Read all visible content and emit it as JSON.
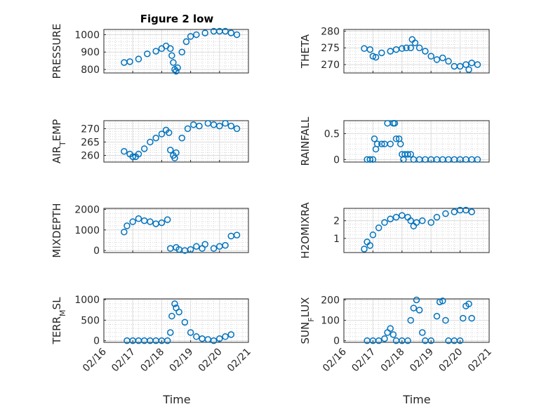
{
  "title": "Figure 2 low",
  "chart_data": [
    {
      "type": "scatter",
      "ylabel": "PRESSURE",
      "ylim": [
        780,
        1030
      ],
      "yticks": [
        800,
        900,
        1000
      ],
      "xlim": [
        0,
        5
      ],
      "marker_color": "#0072BD",
      "grid": "on",
      "points": [
        [
          0.7,
          840
        ],
        [
          0.9,
          845
        ],
        [
          1.2,
          860
        ],
        [
          1.5,
          890
        ],
        [
          1.8,
          905
        ],
        [
          2.0,
          920
        ],
        [
          2.15,
          935
        ],
        [
          2.3,
          920
        ],
        [
          2.35,
          880
        ],
        [
          2.4,
          840
        ],
        [
          2.45,
          800
        ],
        [
          2.5,
          790
        ],
        [
          2.55,
          810
        ],
        [
          2.7,
          900
        ],
        [
          2.85,
          960
        ],
        [
          3.0,
          990
        ],
        [
          3.2,
          1000
        ],
        [
          3.5,
          1010
        ],
        [
          3.8,
          1020
        ],
        [
          4.0,
          1020
        ],
        [
          4.2,
          1020
        ],
        [
          4.4,
          1010
        ],
        [
          4.6,
          1000
        ]
      ]
    },
    {
      "type": "scatter",
      "ylabel": "THETA",
      "ylim": [
        267.5,
        280.5
      ],
      "yticks": [
        270,
        275,
        280
      ],
      "xlim": [
        0,
        5
      ],
      "marker_color": "#0072BD",
      "grid": "on",
      "points": [
        [
          0.7,
          274.8
        ],
        [
          0.9,
          274.5
        ],
        [
          1.0,
          272.5
        ],
        [
          1.1,
          272.2
        ],
        [
          1.3,
          273.5
        ],
        [
          1.6,
          274.0
        ],
        [
          1.8,
          274.5
        ],
        [
          2.0,
          274.8
        ],
        [
          2.15,
          275.0
        ],
        [
          2.3,
          275.0
        ],
        [
          2.35,
          277.5
        ],
        [
          2.45,
          276.5
        ],
        [
          2.6,
          275.0
        ],
        [
          2.8,
          274.0
        ],
        [
          3.0,
          272.5
        ],
        [
          3.2,
          271.5
        ],
        [
          3.4,
          272.0
        ],
        [
          3.6,
          271.0
        ],
        [
          3.8,
          269.5
        ],
        [
          4.0,
          269.5
        ],
        [
          4.2,
          270.0
        ],
        [
          4.3,
          268.5
        ],
        [
          4.4,
          270.5
        ],
        [
          4.6,
          270.0
        ]
      ]
    },
    {
      "type": "scatter",
      "ylabel": "AIR_TEMP",
      "ylim": [
        257.5,
        273
      ],
      "yticks": [
        260,
        265,
        270
      ],
      "xlim": [
        0,
        5
      ],
      "marker_color": "#0072BD",
      "grid": "on",
      "points": [
        [
          0.7,
          261.5
        ],
        [
          0.9,
          260.5
        ],
        [
          1.0,
          259.5
        ],
        [
          1.1,
          259.5
        ],
        [
          1.2,
          260.5
        ],
        [
          1.4,
          262.5
        ],
        [
          1.6,
          265.0
        ],
        [
          1.8,
          266.5
        ],
        [
          2.0,
          268.0
        ],
        [
          2.15,
          269.5
        ],
        [
          2.25,
          268.5
        ],
        [
          2.3,
          262.0
        ],
        [
          2.4,
          260.0
        ],
        [
          2.45,
          259.0
        ],
        [
          2.5,
          261.0
        ],
        [
          2.7,
          266.5
        ],
        [
          2.9,
          270.0
        ],
        [
          3.1,
          271.5
        ],
        [
          3.3,
          271.0
        ],
        [
          3.6,
          272.0
        ],
        [
          3.8,
          271.5
        ],
        [
          4.0,
          271.0
        ],
        [
          4.2,
          272.0
        ],
        [
          4.4,
          271.0
        ],
        [
          4.6,
          270.0
        ]
      ]
    },
    {
      "type": "scatter",
      "ylabel": "RAINFALL",
      "ylim": [
        -0.05,
        0.75
      ],
      "yticks": [
        0,
        0.5
      ],
      "xlim": [
        0,
        5
      ],
      "marker_color": "#0072BD",
      "grid": "on",
      "points": [
        [
          0.8,
          0.0
        ],
        [
          0.9,
          0.0
        ],
        [
          1.0,
          0.0
        ],
        [
          1.05,
          0.4
        ],
        [
          1.1,
          0.2
        ],
        [
          1.15,
          0.3
        ],
        [
          1.3,
          0.3
        ],
        [
          1.4,
          0.3
        ],
        [
          1.5,
          0.7
        ],
        [
          1.6,
          0.3
        ],
        [
          1.7,
          0.7
        ],
        [
          1.75,
          0.7
        ],
        [
          1.8,
          0.4
        ],
        [
          1.9,
          0.4
        ],
        [
          1.95,
          0.3
        ],
        [
          2.0,
          0.1
        ],
        [
          2.05,
          0.0
        ],
        [
          2.1,
          0.1
        ],
        [
          2.2,
          0.1
        ],
        [
          2.3,
          0.1
        ],
        [
          2.4,
          0.0
        ],
        [
          2.6,
          0.0
        ],
        [
          2.8,
          0.0
        ],
        [
          3.0,
          0.0
        ],
        [
          3.2,
          0.0
        ],
        [
          3.4,
          0.0
        ],
        [
          3.6,
          0.0
        ],
        [
          3.8,
          0.0
        ],
        [
          4.0,
          0.0
        ],
        [
          4.2,
          0.0
        ],
        [
          4.4,
          0.0
        ],
        [
          4.6,
          0.0
        ]
      ]
    },
    {
      "type": "scatter",
      "ylabel": "MIXDEPTH",
      "ylim": [
        -100,
        2050
      ],
      "yticks": [
        0,
        1000,
        2000
      ],
      "xlim": [
        0,
        5
      ],
      "marker_color": "#0072BD",
      "grid": "on",
      "points": [
        [
          0.7,
          900
        ],
        [
          0.8,
          1200
        ],
        [
          1.0,
          1400
        ],
        [
          1.2,
          1550
        ],
        [
          1.4,
          1450
        ],
        [
          1.6,
          1400
        ],
        [
          1.8,
          1300
        ],
        [
          2.0,
          1350
        ],
        [
          2.2,
          1500
        ],
        [
          2.3,
          100
        ],
        [
          2.5,
          150
        ],
        [
          2.6,
          50
        ],
        [
          2.8,
          0
        ],
        [
          3.0,
          50
        ],
        [
          3.2,
          200
        ],
        [
          3.4,
          100
        ],
        [
          3.5,
          300
        ],
        [
          3.8,
          100
        ],
        [
          4.0,
          200
        ],
        [
          4.2,
          250
        ],
        [
          4.4,
          700
        ],
        [
          4.6,
          750
        ]
      ]
    },
    {
      "type": "scatter",
      "ylabel": "H2OMIXRA",
      "ylim": [
        0.2,
        2.7
      ],
      "yticks": [
        0,
        1,
        2
      ],
      "xlim": [
        0,
        5
      ],
      "marker_color": "#0072BD",
      "grid": "on",
      "points": [
        [
          0.7,
          0.4
        ],
        [
          0.8,
          0.8
        ],
        [
          0.9,
          0.6
        ],
        [
          1.0,
          1.2
        ],
        [
          1.2,
          1.6
        ],
        [
          1.4,
          1.9
        ],
        [
          1.6,
          2.1
        ],
        [
          1.8,
          2.2
        ],
        [
          2.0,
          2.3
        ],
        [
          2.2,
          2.2
        ],
        [
          2.3,
          2.0
        ],
        [
          2.4,
          1.7
        ],
        [
          2.5,
          1.9
        ],
        [
          2.7,
          2.0
        ],
        [
          3.0,
          1.9
        ],
        [
          3.2,
          2.2
        ],
        [
          3.5,
          2.4
        ],
        [
          3.8,
          2.5
        ],
        [
          4.0,
          2.6
        ],
        [
          4.2,
          2.6
        ],
        [
          4.4,
          2.5
        ]
      ]
    },
    {
      "type": "scatter",
      "ylabel": "TERR_MSL",
      "ylim": [
        -40,
        1020
      ],
      "yticks": [
        0,
        500,
        1000
      ],
      "xlim": [
        0,
        5
      ],
      "marker_color": "#0072BD",
      "grid": "on",
      "points": [
        [
          0.8,
          0
        ],
        [
          1.0,
          0
        ],
        [
          1.2,
          0
        ],
        [
          1.4,
          0
        ],
        [
          1.6,
          0
        ],
        [
          1.8,
          0
        ],
        [
          2.0,
          0
        ],
        [
          2.2,
          0
        ],
        [
          2.3,
          200
        ],
        [
          2.35,
          600
        ],
        [
          2.45,
          900
        ],
        [
          2.5,
          800
        ],
        [
          2.6,
          700
        ],
        [
          2.8,
          450
        ],
        [
          3.0,
          200
        ],
        [
          3.2,
          100
        ],
        [
          3.4,
          50
        ],
        [
          3.6,
          30
        ],
        [
          3.8,
          0
        ],
        [
          4.0,
          50
        ],
        [
          4.2,
          100
        ],
        [
          4.4,
          150
        ]
      ]
    },
    {
      "type": "scatter",
      "ylabel": "SUN_FLUX",
      "ylim": [
        -8,
        205
      ],
      "yticks": [
        0,
        100,
        200
      ],
      "xlim": [
        0,
        5
      ],
      "marker_color": "#0072BD",
      "grid": "on",
      "points": [
        [
          0.8,
          0
        ],
        [
          1.0,
          0
        ],
        [
          1.2,
          0
        ],
        [
          1.4,
          10
        ],
        [
          1.5,
          40
        ],
        [
          1.6,
          60
        ],
        [
          1.7,
          30
        ],
        [
          1.8,
          0
        ],
        [
          2.0,
          0
        ],
        [
          2.2,
          0
        ],
        [
          2.3,
          100
        ],
        [
          2.4,
          160
        ],
        [
          2.5,
          200
        ],
        [
          2.6,
          150
        ],
        [
          2.7,
          40
        ],
        [
          2.8,
          0
        ],
        [
          3.0,
          0
        ],
        [
          3.2,
          120
        ],
        [
          3.3,
          190
        ],
        [
          3.4,
          195
        ],
        [
          3.5,
          100
        ],
        [
          3.6,
          0
        ],
        [
          3.8,
          0
        ],
        [
          4.0,
          0
        ],
        [
          4.1,
          110
        ],
        [
          4.2,
          170
        ],
        [
          4.3,
          180
        ],
        [
          4.4,
          110
        ]
      ]
    }
  ],
  "x_tick_labels": [
    "02/16",
    "02/17",
    "02/18",
    "02/19",
    "02/20",
    "02/21"
  ],
  "x_tick_values": [
    0,
    1,
    2,
    3,
    4,
    5
  ],
  "xlabel": "Time"
}
